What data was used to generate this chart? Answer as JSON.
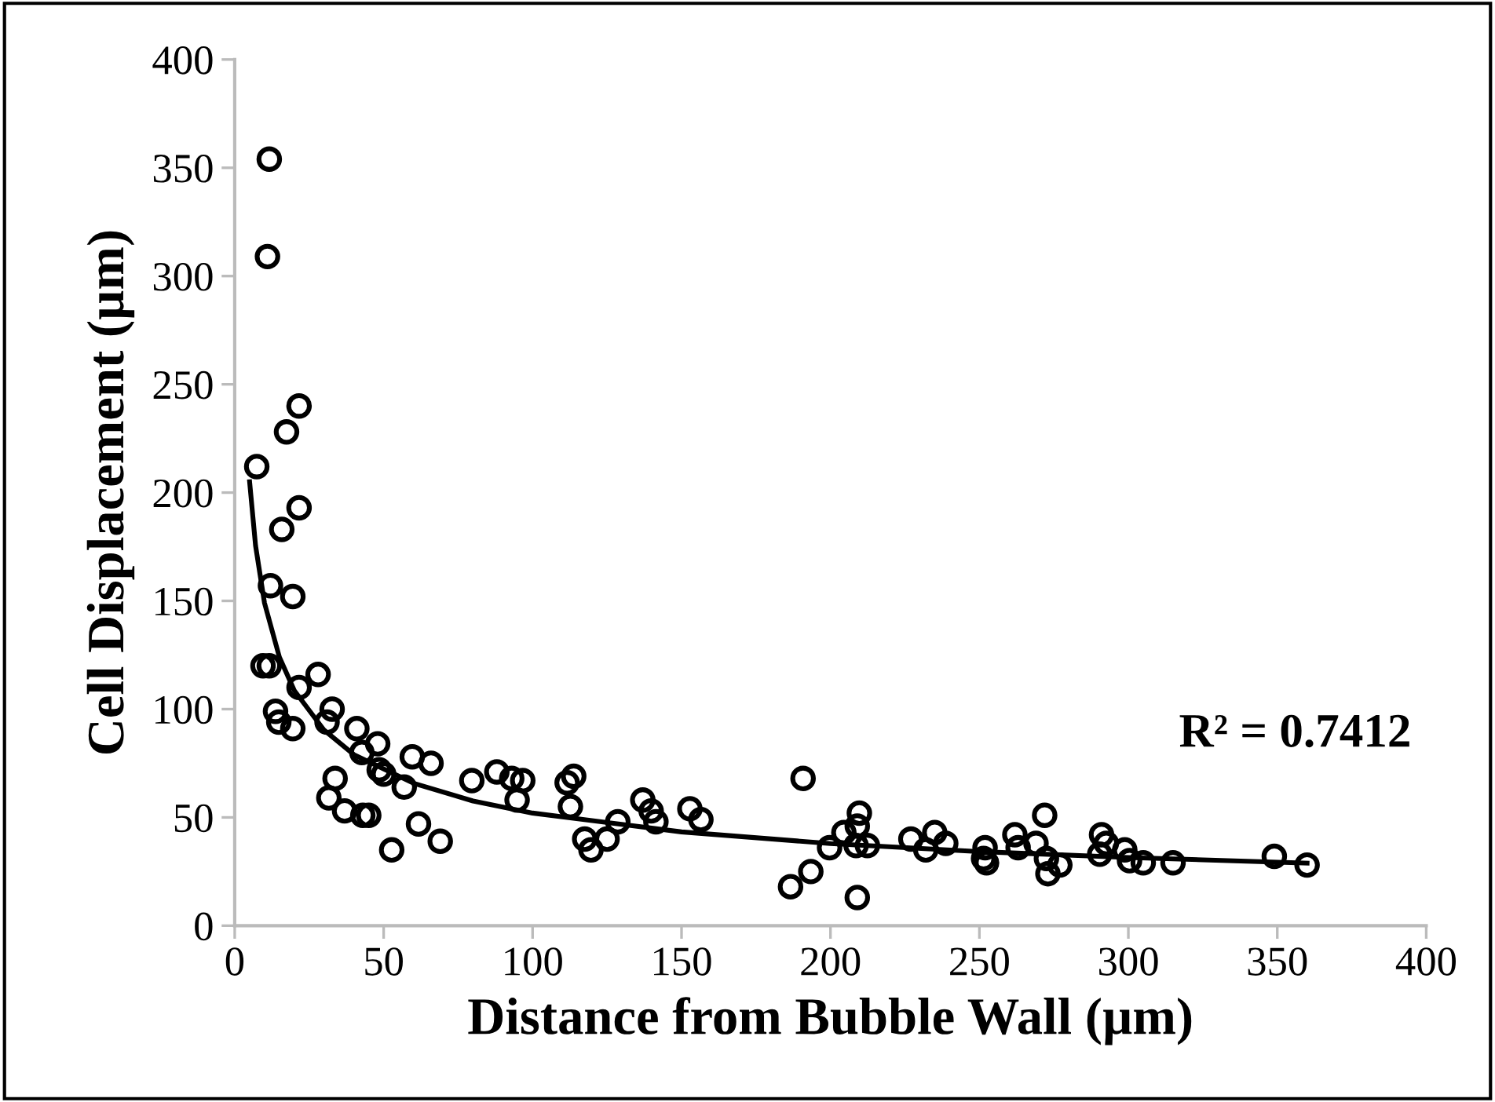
{
  "chart_data": {
    "type": "scatter",
    "xlabel": "Distance from Bubble Wall (µm)",
    "ylabel": "Cell Displacement (µm)",
    "xlim": [
      0,
      400
    ],
    "ylim": [
      0,
      400
    ],
    "xticks": [
      0,
      50,
      100,
      150,
      200,
      250,
      300,
      350,
      400
    ],
    "yticks": [
      0,
      50,
      100,
      150,
      200,
      250,
      300,
      350,
      400
    ],
    "grid": false,
    "legend": false,
    "marker": "circle",
    "annotations": [
      "R² = 0.7412"
    ],
    "series": [
      {
        "color": "#000000",
        "x": [
          11.6,
          11,
          21.6,
          17.4,
          7.4,
          21.6,
          15.8,
          12,
          19.5,
          9.5,
          11.6,
          28,
          21.6,
          13.7,
          32.7,
          14.8,
          19.5,
          31,
          41,
          48,
          42.7,
          59.6,
          65.9,
          48.5,
          50,
          56.9,
          79.6,
          88,
          93,
          96.7,
          94.8,
          33.7,
          31.6,
          36.9,
          43,
          45,
          52.7,
          61.7,
          69,
          113.8,
          111.6,
          112.7,
          117.5,
          119.6,
          125,
          128.6,
          137,
          139.8,
          141.4,
          152.8,
          156.5,
          186.6,
          193.4,
          190.8,
          199.7,
          204.5,
          209,
          209.7,
          208.6,
          212.4,
          209,
          227,
          232,
          235,
          238.7,
          251.9,
          251.4,
          252.4,
          261.9,
          263,
          271.9,
          269,
          272.5,
          273,
          277,
          291,
          292.6,
          290.4,
          298.8,
          300.4,
          305,
          315,
          349,
          360
        ],
        "values": [
          354,
          309,
          240,
          228,
          212,
          193,
          183,
          157,
          152,
          120,
          120,
          116,
          110,
          99,
          100,
          94,
          91,
          94,
          91,
          84,
          80,
          78,
          75,
          72,
          70,
          64,
          67,
          71,
          68,
          67,
          58,
          68,
          59,
          53,
          51,
          51,
          35,
          47,
          39,
          69,
          66,
          55,
          40,
          35,
          40,
          48,
          58,
          53,
          48,
          54,
          49,
          18,
          25,
          68,
          36,
          43,
          46,
          52,
          37,
          37,
          13,
          40,
          35,
          43,
          38,
          36,
          31,
          29,
          42,
          36,
          51,
          38,
          31,
          24,
          28,
          42,
          38,
          33,
          35,
          30,
          29,
          29,
          32,
          28
        ]
      },
      {
        "type": "line",
        "color": "#000000",
        "marker": "none",
        "line_style": "solid",
        "x": [
          5,
          7,
          10,
          15,
          20,
          30,
          40,
          60,
          80,
          100,
          150,
          200,
          250,
          300,
          360
        ],
        "values": [
          205,
          175.5,
          149,
          124,
          108.6,
          90.3,
          79,
          65.8,
          57.6,
          52,
          43.3,
          37.9,
          34.2,
          31.5,
          28.9
        ]
      }
    ]
  }
}
